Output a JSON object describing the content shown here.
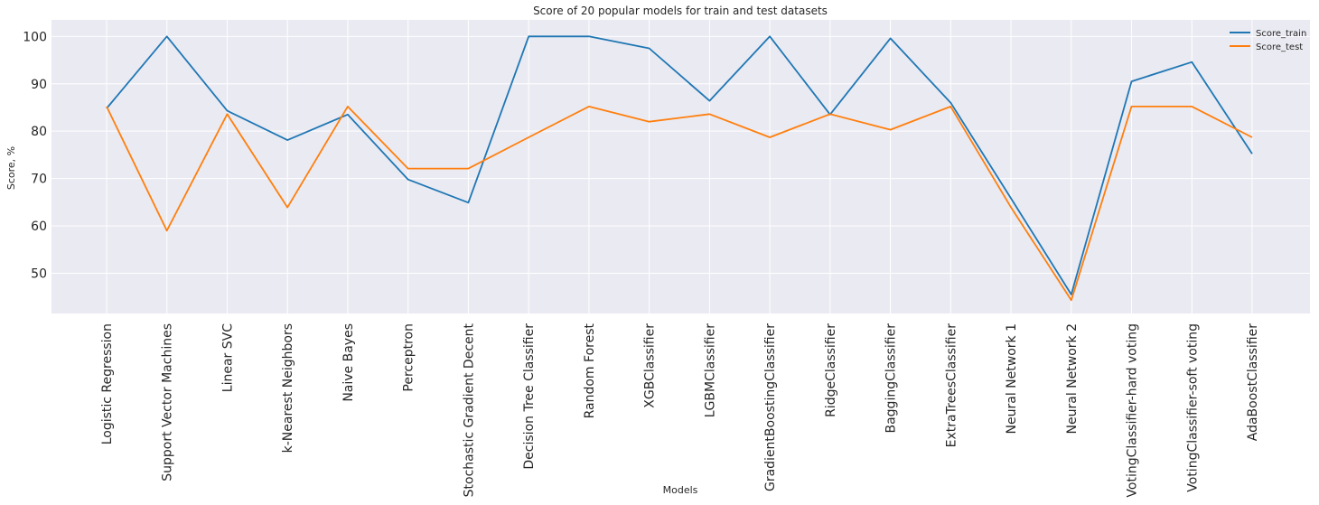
{
  "chart_data": {
    "type": "line",
    "title": "Score of 20 popular models for train and test datasets",
    "xlabel": "Models",
    "ylabel": "Score, %",
    "categories": [
      "Logistic Regression",
      "Support Vector Machines",
      "Linear SVC",
      "k-Nearest Neighbors",
      "Naive Bayes",
      "Perceptron",
      "Stochastic Gradient Decent",
      "Decision Tree Classifier",
      "Random Forest",
      "XGBClassifier",
      "LGBMClassifier",
      "GradientBoostingClassifier",
      "RidgeClassifier",
      "BaggingClassifier",
      "ExtraTreesClassifier",
      "Neural Network 1",
      "Neural Network 2",
      "VotingClassifier-hard voting",
      "VotingClassifier-soft voting",
      "AdaBoostClassifier"
    ],
    "yticks": [
      50,
      60,
      70,
      80,
      90,
      100
    ],
    "ylim": [
      41.5,
      103.5
    ],
    "grid": true,
    "legend_position": "top-right",
    "series": [
      {
        "name": "Score_train",
        "color": "#1f77b4",
        "values": [
          84.8,
          100,
          84.3,
          78.1,
          83.5,
          69.8,
          64.9,
          100,
          100,
          97.5,
          86.4,
          100,
          83.5,
          99.6,
          86.0,
          65.8,
          45.5,
          90.5,
          94.6,
          75.2
        ]
      },
      {
        "name": "Score_test",
        "color": "#ff7f0e",
        "values": [
          85.2,
          59.0,
          83.6,
          63.9,
          85.2,
          72.1,
          72.1,
          78.7,
          85.2,
          82.0,
          83.6,
          78.7,
          83.6,
          80.3,
          85.2,
          63.9,
          44.3,
          85.2,
          85.2,
          78.7
        ]
      }
    ]
  }
}
